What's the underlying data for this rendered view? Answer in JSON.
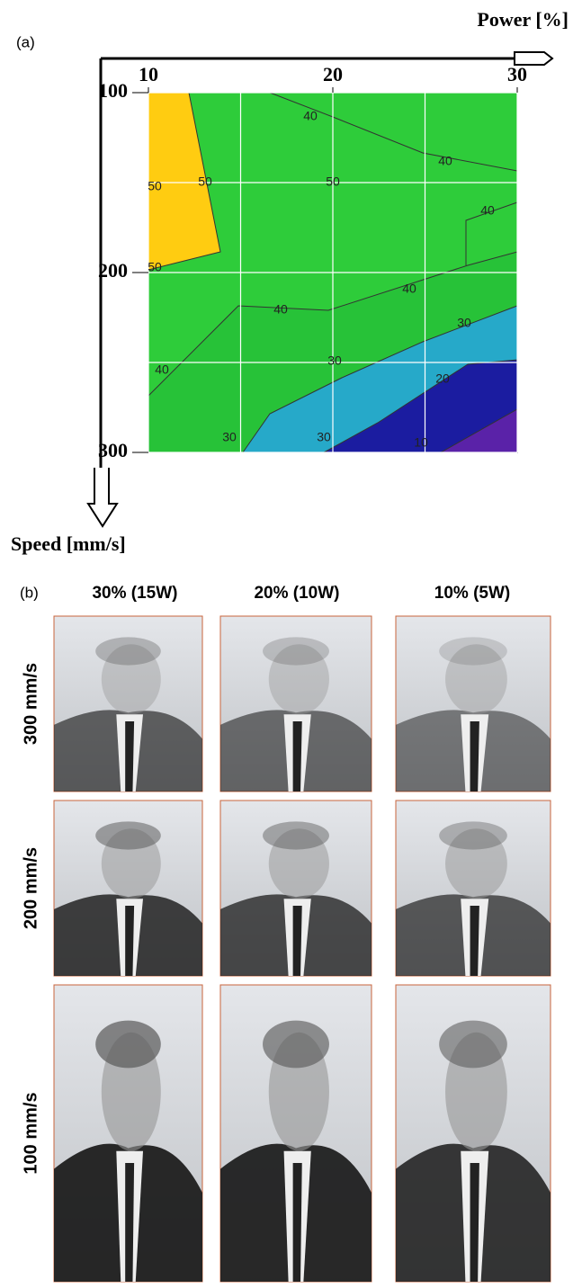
{
  "panel_labels": [
    "(a)",
    "(b)"
  ],
  "chart_data": {
    "type": "contour",
    "xlabel": "Power [%]",
    "ylabel": "Speed [mm/s]",
    "xlim": [
      10,
      30
    ],
    "ylim": [
      100,
      300
    ],
    "xticks": [
      10,
      20,
      30
    ],
    "yticks": [
      100,
      200,
      300
    ],
    "grid": true,
    "contour_labels": [
      40,
      40,
      50,
      50,
      50,
      40,
      50,
      40,
      40,
      30,
      30,
      40,
      20,
      30,
      30,
      10
    ]
  },
  "photo_grid": {
    "columns": [
      "30% (15W)",
      "20% (10W)",
      "10% (5W)"
    ],
    "rows": [
      "300 mm/s",
      "200 mm/s",
      "100 mm/s"
    ]
  }
}
